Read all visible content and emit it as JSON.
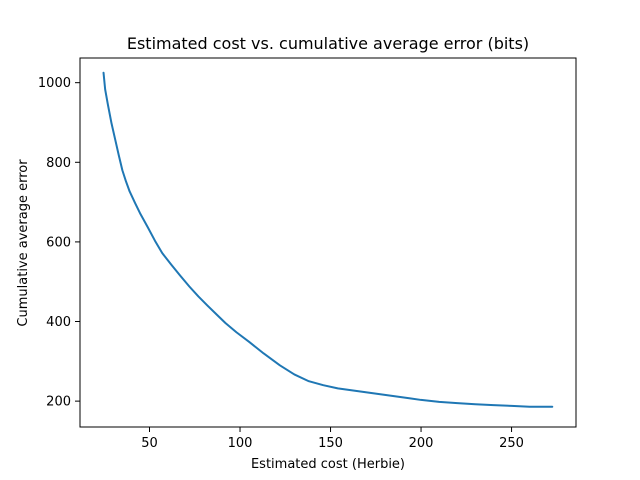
{
  "chart_data": {
    "type": "line",
    "title": "Estimated cost vs. cumulative average error (bits)",
    "xlabel": "Estimated cost (Herbie)",
    "ylabel": "Cumulative average error",
    "xlim": [
      11.6,
      285.6
    ],
    "ylim": [
      135,
      1062
    ],
    "xticks": [
      50,
      100,
      150,
      200,
      250
    ],
    "yticks": [
      200,
      400,
      600,
      800,
      1000
    ],
    "grid": false,
    "legend": "none",
    "series": [
      {
        "color": "#1f77b4",
        "x": [
          24.6,
          25.5,
          27,
          29,
          31,
          33,
          35,
          37,
          39,
          42,
          45,
          49,
          53,
          57,
          62,
          67,
          72,
          77,
          82,
          87,
          92,
          98,
          105,
          113,
          122,
          130,
          138,
          146,
          154,
          162,
          170,
          178,
          186,
          194,
          200,
          210,
          220,
          230,
          240,
          250,
          260,
          265,
          272.5
        ],
        "y": [
          1025,
          983,
          945,
          898,
          858,
          818,
          780,
          752,
          727,
          698,
          670,
          637,
          603,
          572,
          543,
          515,
          488,
          463,
          440,
          418,
          396,
          373,
          349,
          320,
          290,
          267,
          250,
          240,
          232,
          227,
          222,
          217,
          212,
          207,
          203,
          198,
          195,
          192,
          190,
          188,
          186,
          186,
          186
        ]
      }
    ]
  }
}
